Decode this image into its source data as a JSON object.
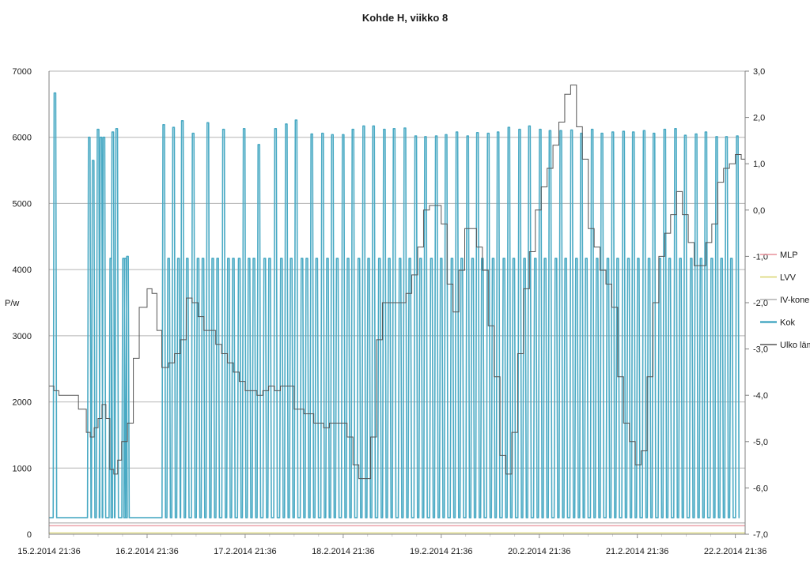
{
  "chart_data": {
    "type": "line",
    "title": "Kohde H, viikko 8",
    "ylabel": "P/w",
    "ylabel_right": "",
    "xlabel": "",
    "ylim": [
      0,
      7000
    ],
    "y2lim": [
      -7.0,
      3.0
    ],
    "y_ticks": [
      "0",
      "1000",
      "2000",
      "3000",
      "4000",
      "5000",
      "6000",
      "7000"
    ],
    "y2_ticks": [
      "-7,0",
      "-6,0",
      "-5,0",
      "-4,0",
      "-3,0",
      "-2,0",
      "-1,0",
      "0,0",
      "1,0",
      "2,0",
      "3,0"
    ],
    "x_ticks": [
      "15.2.2014 21:36",
      "16.2.2014 21:36",
      "17.2.2014 21:36",
      "18.2.2014 21:36",
      "19.2.2014 21:36",
      "20.2.2014 21:36",
      "21.2.2014 21:36",
      "22.2.2014 21:36"
    ],
    "xlim_days": [
      0,
      7.1
    ],
    "grid": "horizontal",
    "legend_position": "right",
    "colors": {
      "MLP": "#e8909a",
      "LVV": "#d8d36a",
      "IV-kone": "#b0b0b0",
      "Kok": "#4aaac4",
      "Ulko läm": "#555555"
    },
    "series": [
      {
        "name": "MLP",
        "axis": "left",
        "baseline": 130
      },
      {
        "name": "LVV",
        "axis": "left",
        "baseline": 20
      },
      {
        "name": "IV-kone",
        "axis": "left",
        "baseline": 170
      },
      {
        "name": "Kok",
        "axis": "left",
        "baseline": 250,
        "peak_days": [
          0.06,
          0.41,
          0.45,
          0.5,
          0.53,
          0.56,
          0.63,
          0.65,
          0.69,
          0.76,
          0.78,
          0.8,
          1.17,
          1.22,
          1.27,
          1.32,
          1.36,
          1.41,
          1.47,
          1.52,
          1.57,
          1.62,
          1.67,
          1.72,
          1.78,
          1.83,
          1.88,
          1.94,
          1.99,
          2.04,
          2.09,
          2.14,
          2.2,
          2.25,
          2.31,
          2.37,
          2.42,
          2.47,
          2.52,
          2.58,
          2.63,
          2.68,
          2.73,
          2.79,
          2.84,
          2.89,
          2.94,
          3.0,
          3.05,
          3.1,
          3.16,
          3.21,
          3.26,
          3.31,
          3.37,
          3.42,
          3.47,
          3.52,
          3.58,
          3.63,
          3.68,
          3.74,
          3.79,
          3.84,
          3.9,
          3.95,
          4.0,
          4.05,
          4.11,
          4.16,
          4.21,
          4.27,
          4.32,
          4.37,
          4.42,
          4.48,
          4.53,
          4.58,
          4.64,
          4.69,
          4.74,
          4.8,
          4.85,
          4.9,
          4.96,
          5.01,
          5.06,
          5.11,
          5.17,
          5.22,
          5.27,
          5.33,
          5.38,
          5.43,
          5.48,
          5.54,
          5.59,
          5.64,
          5.7,
          5.75,
          5.8,
          5.86,
          5.91,
          5.96,
          6.01,
          6.07,
          6.12,
          6.17,
          6.23,
          6.28,
          6.33,
          6.39,
          6.44,
          6.49,
          6.55,
          6.6,
          6.65,
          6.7,
          6.76,
          6.81,
          6.86,
          6.91,
          6.96,
          7.02,
          7.06
        ],
        "peak_values": [
          6670,
          6000,
          5650,
          6120,
          6000,
          6000,
          4170,
          6080,
          6130,
          4170,
          4170,
          4200,
          6190,
          4170,
          6150,
          4170,
          6250,
          4170,
          6060,
          4170,
          4170,
          6220,
          4170,
          4170,
          6120,
          4170,
          4170,
          4170,
          6130,
          4170,
          4170,
          5890,
          4170,
          4170,
          6130,
          4170,
          6200,
          4170,
          6260,
          4170,
          4170,
          6050,
          4170,
          6060,
          4170,
          6040,
          4170,
          6040,
          4170,
          6120,
          4170,
          6170,
          4170,
          6170,
          4170,
          6120,
          4170,
          6130,
          4170,
          6140,
          4170,
          6020,
          4170,
          6010,
          4170,
          6020,
          4170,
          6040,
          4170,
          6080,
          4170,
          6020,
          4170,
          6070,
          4170,
          6060,
          4170,
          6080,
          4170,
          6150,
          4170,
          6120,
          4170,
          6170,
          4170,
          6120,
          4170,
          6100,
          4170,
          6100,
          4170,
          6110,
          4170,
          6060,
          4170,
          6120,
          4170,
          6060,
          4170,
          6080,
          4170,
          6090,
          4170,
          6080,
          4170,
          6100,
          4170,
          6060,
          4170,
          6120,
          4170,
          6130,
          4170,
          6030,
          4170,
          6050,
          4170,
          6080,
          4170,
          6010,
          4170,
          6010,
          4170,
          6020
        ]
      },
      {
        "name": "Ulko läm",
        "axis": "right",
        "x_days": [
          0.0,
          0.05,
          0.1,
          0.3,
          0.38,
          0.42,
          0.46,
          0.5,
          0.54,
          0.58,
          0.62,
          0.66,
          0.7,
          0.74,
          0.8,
          0.86,
          0.92,
          1.0,
          1.05,
          1.1,
          1.15,
          1.22,
          1.28,
          1.34,
          1.4,
          1.46,
          1.52,
          1.58,
          1.64,
          1.7,
          1.76,
          1.82,
          1.88,
          1.94,
          2.0,
          2.06,
          2.12,
          2.18,
          2.24,
          2.3,
          2.36,
          2.42,
          2.5,
          2.6,
          2.7,
          2.8,
          2.86,
          2.92,
          2.98,
          3.04,
          3.1,
          3.16,
          3.22,
          3.28,
          3.34,
          3.4,
          3.46,
          3.52,
          3.58,
          3.64,
          3.7,
          3.76,
          3.82,
          3.88,
          3.94,
          4.0,
          4.06,
          4.12,
          4.18,
          4.24,
          4.3,
          4.36,
          4.42,
          4.48,
          4.54,
          4.6,
          4.66,
          4.72,
          4.78,
          4.84,
          4.9,
          4.96,
          5.02,
          5.08,
          5.14,
          5.2,
          5.26,
          5.32,
          5.38,
          5.44,
          5.5,
          5.56,
          5.62,
          5.68,
          5.74,
          5.8,
          5.86,
          5.92,
          5.98,
          6.04,
          6.1,
          6.16,
          6.22,
          6.28,
          6.34,
          6.4,
          6.46,
          6.52,
          6.58,
          6.64,
          6.7,
          6.76,
          6.82,
          6.88,
          6.94,
          7.0,
          7.06,
          7.1
        ],
        "values": [
          -3.8,
          -3.9,
          -4.0,
          -4.3,
          -4.8,
          -4.9,
          -4.7,
          -4.5,
          -4.2,
          -4.5,
          -5.6,
          -5.7,
          -5.4,
          -5.0,
          -4.6,
          -3.2,
          -2.1,
          -1.7,
          -1.8,
          -2.6,
          -3.4,
          -3.3,
          -3.1,
          -2.8,
          -1.9,
          -2.0,
          -2.3,
          -2.6,
          -2.6,
          -2.9,
          -3.1,
          -3.3,
          -3.5,
          -3.7,
          -3.9,
          -3.9,
          -4.0,
          -3.9,
          -3.8,
          -3.9,
          -3.8,
          -3.8,
          -4.3,
          -4.4,
          -4.6,
          -4.7,
          -4.6,
          -4.6,
          -4.6,
          -4.9,
          -5.5,
          -5.8,
          -5.8,
          -4.9,
          -2.8,
          -2.0,
          -2.0,
          -2.0,
          -2.0,
          -1.8,
          -1.4,
          -0.8,
          0.0,
          0.1,
          0.1,
          -0.3,
          -1.6,
          -2.2,
          -1.3,
          -0.4,
          -0.4,
          -0.8,
          -1.3,
          -2.5,
          -3.6,
          -5.3,
          -5.7,
          -4.8,
          -3.1,
          -1.7,
          -0.9,
          0.0,
          0.5,
          0.9,
          1.4,
          1.9,
          2.5,
          2.7,
          1.8,
          1.1,
          -0.4,
          -0.8,
          -1.3,
          -1.6,
          -2.1,
          -3.6,
          -4.6,
          -5.0,
          -5.5,
          -5.2,
          -3.6,
          -2.0,
          -1.0,
          -0.5,
          -0.1,
          0.4,
          -0.1,
          -0.7,
          -1.2,
          -1.2,
          -0.7,
          -0.3,
          0.6,
          0.9,
          1.0,
          1.2,
          1.1,
          1.0
        ]
      }
    ]
  }
}
